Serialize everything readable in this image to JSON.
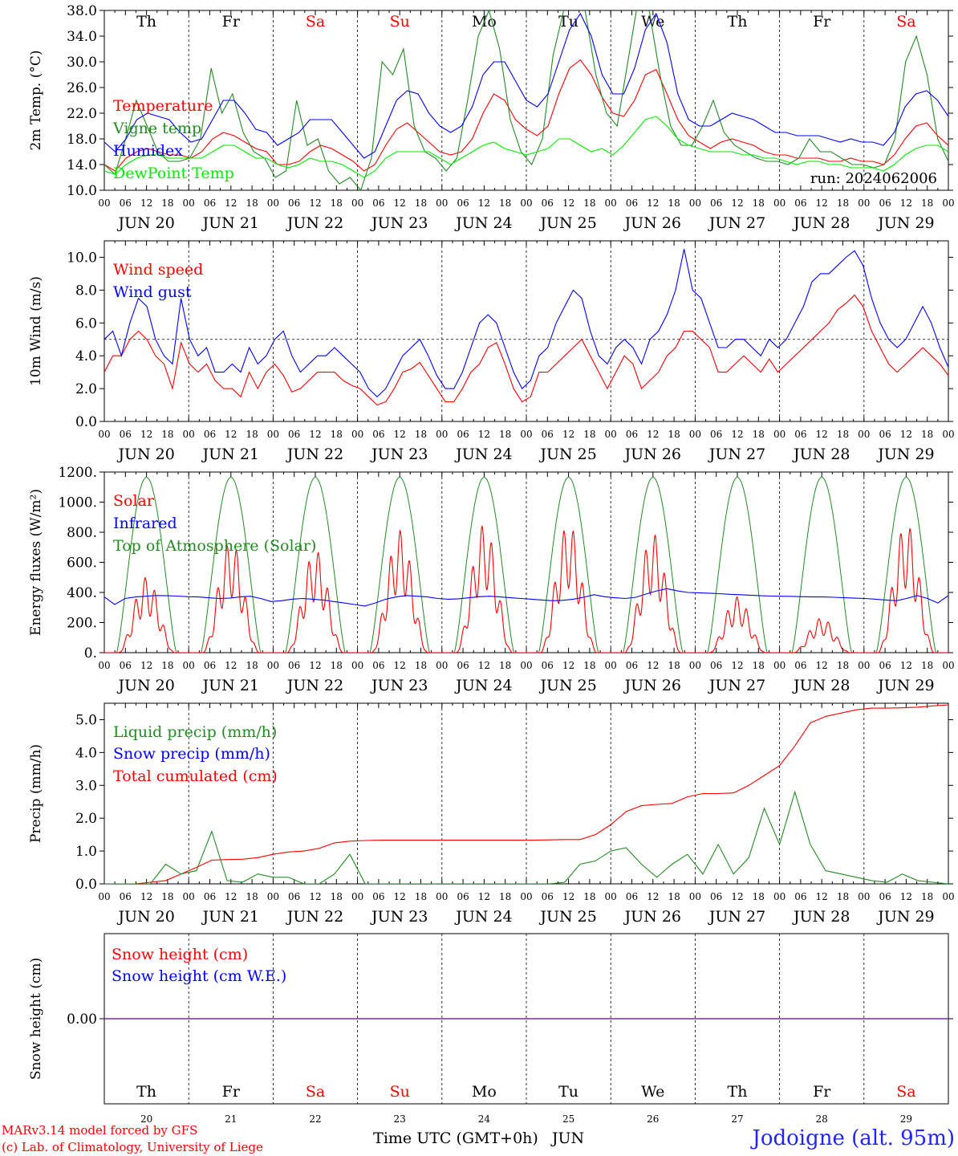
{
  "chart_data": [
    {
      "type": "line",
      "ylabel": "2m Temp. (°C)",
      "ylim": [
        10,
        38
      ],
      "yticks": [
        "10.0",
        "14.0",
        "18.0",
        "22.0",
        "26.0",
        "30.0",
        "34.0",
        "38.0"
      ],
      "legend": [
        "Temperature",
        "Vigne temp",
        "Humidex",
        "DewPoint Temp"
      ],
      "annotation": "run: 2024062006",
      "series": [
        {
          "name": "Temperature",
          "color": "#ff0000",
          "values": [
            14,
            13,
            15,
            16,
            16.5,
            16,
            15.5,
            15.5,
            15,
            16,
            18,
            19,
            18.5,
            17.5,
            16.5,
            16,
            14,
            14,
            14.5,
            16,
            17,
            16.5,
            15.5,
            14.5,
            13,
            14,
            17,
            19.5,
            20.5,
            19,
            17.5,
            16,
            15.5,
            16,
            18,
            22,
            25,
            24,
            21,
            19.5,
            18.5,
            20,
            25,
            29,
            30.3,
            28,
            24.5,
            22,
            21.5,
            24,
            28,
            28.8,
            25,
            21,
            18.5,
            17.5,
            16.5,
            17.5,
            18,
            17.5,
            17,
            16,
            15.5,
            15.5,
            15,
            15,
            15,
            14.5,
            14.5,
            15,
            14.5,
            14.5,
            14,
            15.5,
            18,
            20,
            20.5,
            18.5,
            17
          ]
        },
        {
          "name": "Vigne temp",
          "color": "#228B22",
          "values": [
            14,
            12.5,
            18,
            24,
            20,
            16,
            14.5,
            14.5,
            15,
            18,
            29,
            22,
            25,
            19,
            16,
            15,
            12,
            13,
            24,
            17,
            18,
            13,
            11,
            12,
            10,
            15,
            30,
            28,
            32,
            20,
            16,
            15,
            13,
            15,
            24,
            34,
            38,
            32,
            21,
            16,
            14,
            18,
            31,
            38,
            42,
            38,
            28,
            22,
            20,
            30,
            40,
            38,
            28,
            20,
            17,
            17,
            20,
            24,
            19,
            17,
            16,
            15,
            14.5,
            14.5,
            14,
            15,
            18,
            16,
            16,
            15,
            14,
            14,
            13.5,
            14,
            18,
            30,
            34,
            28,
            18,
            14.5
          ]
        },
        {
          "name": "Humidex",
          "color": "#0000ff",
          "values": [
            17.5,
            16,
            18,
            21,
            22,
            21.5,
            21,
            19,
            17.5,
            18,
            21,
            24,
            24,
            22,
            19.5,
            19,
            17,
            18,
            19,
            21,
            21,
            21,
            19,
            17,
            15,
            16,
            20,
            24,
            25.5,
            25,
            22,
            20,
            19,
            20,
            23,
            28,
            30,
            30,
            27,
            24,
            23,
            25,
            30,
            35,
            37.5,
            34,
            28,
            25,
            25,
            29,
            35,
            37.5,
            33,
            25,
            21,
            20,
            20,
            21,
            22,
            21.5,
            21,
            20,
            19,
            19,
            18.5,
            18.5,
            18.5,
            18,
            17.5,
            18,
            17.5,
            17.5,
            17,
            19,
            23,
            25,
            25.5,
            24,
            21.5
          ]
        },
        {
          "name": "DewPoint Temp",
          "color": "#00ee00",
          "values": [
            13,
            12.5,
            14,
            15,
            15.5,
            15.5,
            15,
            15,
            15,
            15,
            16,
            17,
            17,
            16,
            15,
            15,
            14,
            13.5,
            14,
            15,
            14.5,
            14.5,
            14,
            13,
            12,
            13,
            15,
            16,
            16,
            16,
            16,
            15,
            14,
            15,
            16,
            17,
            17.5,
            16.5,
            16,
            15.5,
            16,
            16.5,
            18,
            18,
            17,
            16,
            16.5,
            15.5,
            17,
            19,
            21,
            21.5,
            20,
            18,
            17,
            16.5,
            16,
            16,
            16,
            15.5,
            15.5,
            15,
            15,
            14.5,
            14,
            14.5,
            14.5,
            14,
            14,
            13.5,
            13.5,
            13.5,
            13,
            14,
            15.5,
            16.5,
            17,
            17,
            16
          ]
        }
      ]
    },
    {
      "type": "line",
      "ylabel": "10m Wind (m/s)",
      "ylim": [
        0,
        11
      ],
      "yticks": [
        "0.0",
        "2.0",
        "4.0",
        "6.0",
        "8.0",
        "10.0"
      ],
      "reference_line": 5,
      "legend": [
        "Wind speed",
        "Wind gust"
      ],
      "series": [
        {
          "name": "Wind speed",
          "color": "#ff0000",
          "values": [
            3,
            4,
            4,
            5,
            5.5,
            5,
            4,
            3.5,
            2,
            4.8,
            3.5,
            3,
            3.5,
            2.5,
            2,
            2,
            1.5,
            3,
            2,
            3,
            3.5,
            2.8,
            1.8,
            2,
            2.5,
            3,
            3,
            3,
            2.5,
            2.2,
            2,
            1.5,
            1,
            1.2,
            2,
            3,
            3.2,
            3.6,
            2.8,
            2,
            1.2,
            1.2,
            2,
            3,
            3.5,
            4.5,
            4.8,
            3.5,
            2,
            1.2,
            1.5,
            3,
            3,
            3.5,
            4,
            4.5,
            5,
            4,
            3,
            2,
            3,
            4,
            3.5,
            2,
            2.5,
            3,
            4,
            4.5,
            5.5,
            5.5,
            5,
            4.5,
            3,
            3,
            3.5,
            4,
            3.5,
            3,
            3.8,
            3,
            3.5,
            4,
            4.5,
            5,
            5.5,
            6,
            6.8,
            7.2,
            7.7,
            7,
            5.5,
            4.5,
            3.5,
            3,
            3.5,
            4,
            4.5,
            4,
            3.5,
            2.8
          ]
        },
        {
          "name": "Wind gust",
          "color": "#0000ff",
          "values": [
            5,
            5.5,
            4,
            6,
            7.5,
            7,
            5,
            4,
            3.5,
            7.5,
            5,
            4,
            4.5,
            3,
            3,
            3.5,
            3,
            4.5,
            3.5,
            4,
            5,
            5.5,
            4,
            3,
            3.5,
            4,
            4,
            4.5,
            4,
            3.5,
            3,
            2,
            1.5,
            2,
            3,
            4,
            4.5,
            5,
            4,
            2.8,
            2,
            2,
            3,
            4.5,
            6,
            6.5,
            6,
            4.5,
            3,
            2,
            2.5,
            4,
            4.5,
            6,
            7,
            8,
            7.5,
            5.5,
            4,
            3.5,
            4.5,
            5,
            4.5,
            3.5,
            5,
            5.5,
            6.5,
            8,
            10.5,
            8,
            7.5,
            6,
            4.5,
            4.5,
            5,
            5,
            4.5,
            4,
            5,
            4.5,
            5,
            6,
            7,
            8.5,
            9,
            9,
            9.5,
            10,
            10.4,
            9.5,
            7.5,
            6,
            5,
            4.5,
            5,
            6,
            7,
            6,
            4.5,
            3.3
          ]
        }
      ]
    },
    {
      "type": "line",
      "ylabel": "Energy fluxes (W/m²)",
      "ylim": [
        0,
        1200
      ],
      "yticks": [
        "0.",
        "200.",
        "400.",
        "600.",
        "800.",
        "1000.",
        "1200."
      ],
      "legend": [
        "Solar",
        "Infrared",
        "Top of Atmosphere (Solar)"
      ],
      "toa_peak": 1165,
      "solar_peaks": [
        500,
        740,
        680,
        810,
        850,
        860,
        790,
        370,
        230,
        860
      ],
      "series": [
        {
          "name": "Infrared",
          "color": "#0000ff",
          "values": [
            370,
            320,
            360,
            370,
            375,
            380,
            378,
            376,
            372,
            370,
            365,
            360,
            362,
            370,
            375,
            360,
            340,
            345,
            355,
            360,
            355,
            350,
            340,
            330,
            320,
            310,
            330,
            355,
            370,
            380,
            375,
            370,
            360,
            355,
            358,
            365,
            372,
            375,
            370,
            365,
            360,
            355,
            350,
            345,
            348,
            355,
            368,
            385,
            372,
            365,
            360,
            368,
            390,
            410,
            425,
            410,
            400,
            398,
            395,
            392,
            388,
            385,
            382,
            378,
            376,
            375,
            374,
            372,
            370,
            370,
            368,
            365,
            362,
            360,
            355,
            350,
            345,
            360,
            380,
            360,
            330,
            380
          ]
        }
      ]
    },
    {
      "type": "line",
      "ylabel": "Precip (mm/h)",
      "ylim": [
        0,
        5.5
      ],
      "yticks": [
        "0.0",
        "1.0",
        "2.0",
        "3.0",
        "4.0",
        "5.0"
      ],
      "legend": [
        "Liquid precip (mm/h)",
        "Snow precip (mm/h)",
        "Total cumulated (cm)"
      ],
      "series": [
        {
          "name": "Total cumulated (cm)",
          "color": "#ff0000",
          "values": [
            0,
            0,
            0,
            0.05,
            0.1,
            0.3,
            0.5,
            0.72,
            0.74,
            0.75,
            0.8,
            0.9,
            0.97,
            1.0,
            1.08,
            1.25,
            1.3,
            1.32,
            1.33,
            1.33,
            1.33,
            1.33,
            1.33,
            1.33,
            1.33,
            1.33,
            1.33,
            1.33,
            1.33,
            1.34,
            1.35,
            1.35,
            1.5,
            1.8,
            2.2,
            2.38,
            2.42,
            2.45,
            2.65,
            2.75,
            2.75,
            2.77,
            3.0,
            3.3,
            3.6,
            4.2,
            4.9,
            5.1,
            5.2,
            5.3,
            5.35,
            5.35,
            5.36,
            5.38,
            5.42,
            5.45
          ]
        },
        {
          "name": "Liquid precip (mm/h)",
          "color": "#228B22",
          "values": [
            0,
            0,
            0,
            0,
            0.6,
            0.3,
            0.4,
            1.6,
            0.1,
            0.05,
            0.3,
            0.2,
            0.2,
            0,
            0,
            0.3,
            0.9,
            0,
            0,
            0,
            0,
            0,
            0,
            0,
            0,
            0,
            0,
            0,
            0,
            0,
            0.05,
            0.6,
            0.7,
            1.0,
            1.1,
            0.6,
            0.2,
            0.6,
            0.9,
            0.3,
            1.2,
            0.3,
            0.8,
            2.3,
            1.2,
            2.8,
            1.2,
            0.4,
            0.3,
            0.2,
            0.1,
            0.05,
            0.3,
            0.1,
            0.05,
            0
          ]
        },
        {
          "name": "Snow precip (mm/h)",
          "color": "#0000ff",
          "values": []
        }
      ]
    },
    {
      "type": "line",
      "ylabel": "Snow height (cm)",
      "ylim": [
        -1,
        1
      ],
      "yticks": [
        "0.00"
      ],
      "legend": [
        "Snow height (cm)",
        "Snow height (cm W.E.)"
      ],
      "series": [
        {
          "name": "Snow height (cm)",
          "color": "#ff0000",
          "values": [
            0,
            0
          ]
        },
        {
          "name": "Snow height (cm W.E.)",
          "color": "#0000ff",
          "values": [
            0,
            0
          ]
        }
      ]
    }
  ],
  "days": [
    {
      "abbr": "Th",
      "date": "JUN 20",
      "num": "20",
      "weekend": false
    },
    {
      "abbr": "Fr",
      "date": "JUN 21",
      "num": "21",
      "weekend": false
    },
    {
      "abbr": "Sa",
      "date": "JUN 22",
      "num": "22",
      "weekend": true
    },
    {
      "abbr": "Su",
      "date": "JUN 23",
      "num": "23",
      "weekend": true
    },
    {
      "abbr": "Mo",
      "date": "JUN 24",
      "num": "24",
      "weekend": false
    },
    {
      "abbr": "Tu",
      "date": "JUN 25",
      "num": "25",
      "weekend": false
    },
    {
      "abbr": "We",
      "date": "JUN 26",
      "num": "26",
      "weekend": false
    },
    {
      "abbr": "Th",
      "date": "JUN 27",
      "num": "27",
      "weekend": false
    },
    {
      "abbr": "Fr",
      "date": "JUN 28",
      "num": "28",
      "weekend": false
    },
    {
      "abbr": "Sa",
      "date": "JUN 29",
      "num": "29",
      "weekend": true
    }
  ],
  "hour_ticks": [
    "00",
    "06",
    "12",
    "18"
  ],
  "xlabel": "Time UTC (GMT+0h)",
  "month": "JUN",
  "credit_line1": "MARv3.14 model forced by GFS",
  "credit_line2": "(c) Lab. of Climatology, University of Liege",
  "location": "Jodoigne (alt. 95m)",
  "colors": {
    "weekend": "#ff0000",
    "weekday": "#000000",
    "credit": "#ff0000",
    "location": "#2222ff"
  }
}
